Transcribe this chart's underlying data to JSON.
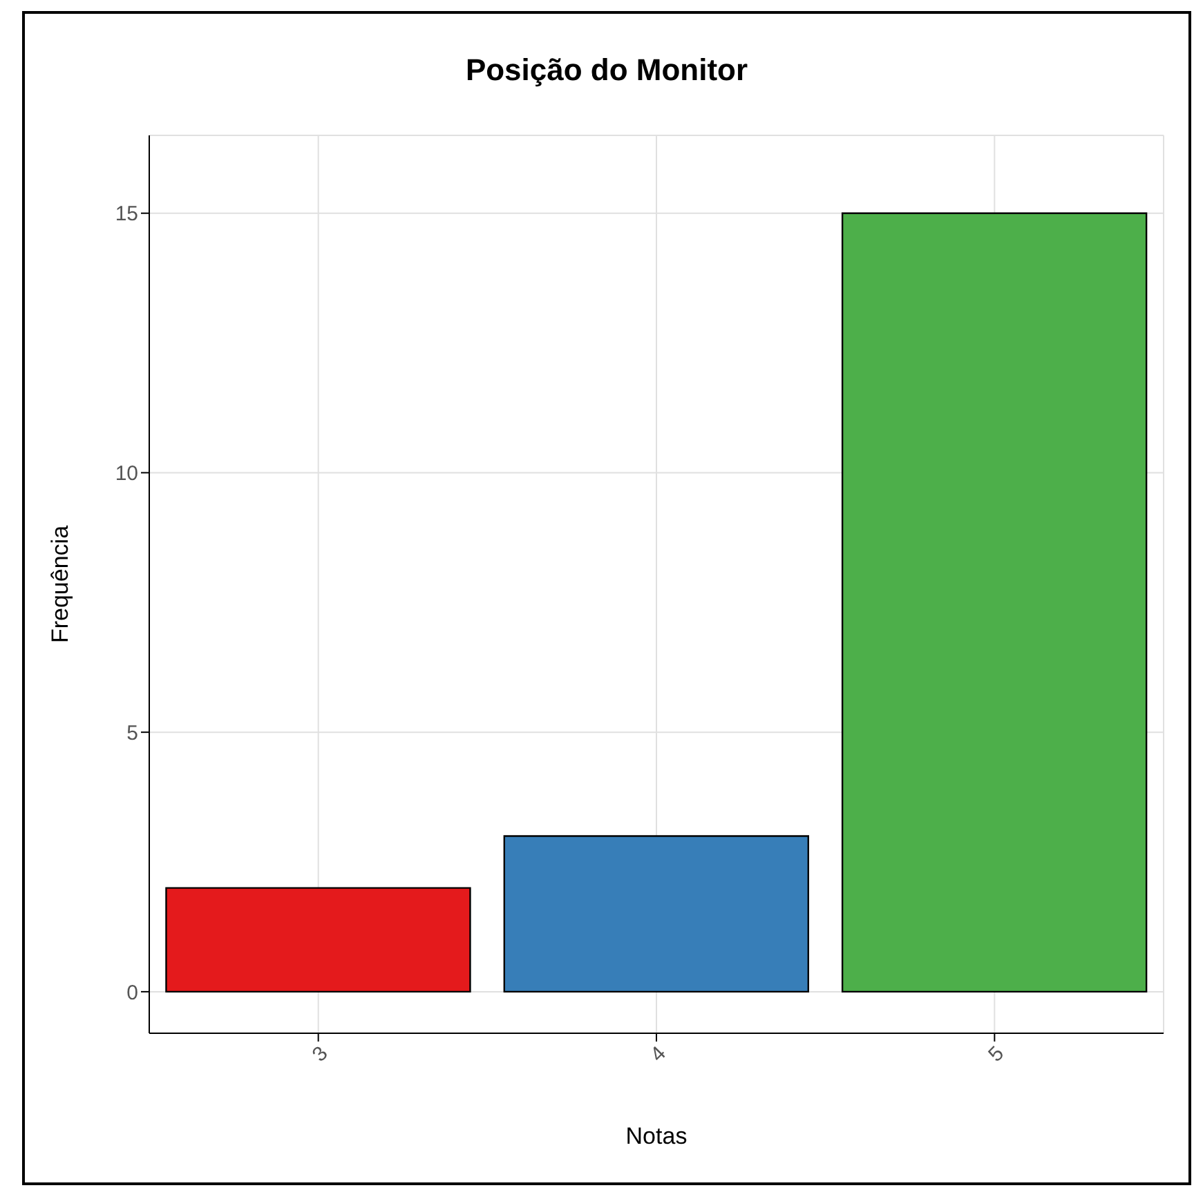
{
  "chart_data": {
    "type": "bar",
    "title": "Posição do Monitor",
    "xlabel": "Notas",
    "ylabel": "Frequência",
    "categories": [
      "3",
      "4",
      "5"
    ],
    "values": [
      2,
      3,
      15
    ],
    "colors": [
      "#e41a1c",
      "#377eb8",
      "#4daf4a"
    ],
    "ylim": [
      -0.8,
      16.5
    ],
    "yticks": [
      0,
      5,
      10,
      15
    ],
    "grid": true
  }
}
